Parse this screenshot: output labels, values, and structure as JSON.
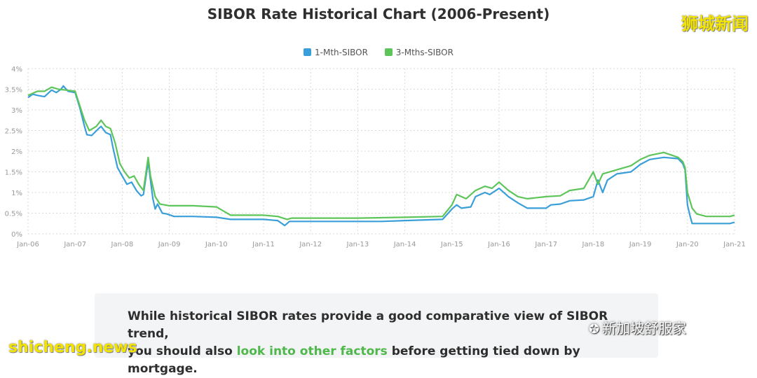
{
  "watermarks": {
    "top_right": "狮城新闻",
    "bottom_left": "shicheng.news",
    "wechat": "新加坡舒服家"
  },
  "colors": {
    "one_month": "#3a9fd9",
    "three_month": "#5ec55a",
    "link": "#4fb74b",
    "grid": "#d9d9d9"
  },
  "caption": {
    "line1": "While historical SIBOR rates provide a good comparative view of SIBOR trend,",
    "pre": "you should also ",
    "link": "look into other factors",
    "post": " before getting tied down by mortgage."
  },
  "chart_data": {
    "type": "line",
    "title": "SIBOR Rate Historical Chart (2006-Present)",
    "xlabel": "",
    "ylabel": "",
    "ylim": [
      0,
      4
    ],
    "yticks": [
      "0%",
      "0.5%",
      "1%",
      "1.5%",
      "2%",
      "2.5%",
      "3%",
      "3.5%",
      "4%"
    ],
    "xticks": [
      {
        "label": "Jan-06",
        "t": 0
      },
      {
        "label": "Jan-07",
        "t": 1
      },
      {
        "label": "Jan-08",
        "t": 2
      },
      {
        "label": "Jan-09",
        "t": 3
      },
      {
        "label": "Jan-10",
        "t": 4
      },
      {
        "label": "Jan-11",
        "t": 5
      },
      {
        "label": "Jan-12",
        "t": 6
      },
      {
        "label": "Jan-13",
        "t": 7
      },
      {
        "label": "Jan-14",
        "t": 8
      },
      {
        "label": "Jan-15",
        "t": 9
      },
      {
        "label": "Jan-16",
        "t": 10
      },
      {
        "label": "Jan-17",
        "t": 11
      },
      {
        "label": "Jan-18",
        "t": 12
      },
      {
        "label": "Jan-19",
        "t": 13
      },
      {
        "label": "Jan-20",
        "t": 14
      },
      {
        "label": "Jan-21",
        "t": 15
      }
    ],
    "legend_position": "top-center",
    "grid": true,
    "series": [
      {
        "name": "1-Mth-SIBOR",
        "color": "#3a9fd9",
        "points": [
          [
            0,
            3.3
          ],
          [
            0.1,
            3.38
          ],
          [
            0.2,
            3.35
          ],
          [
            0.35,
            3.32
          ],
          [
            0.5,
            3.48
          ],
          [
            0.6,
            3.42
          ],
          [
            0.7,
            3.5
          ],
          [
            0.75,
            3.58
          ],
          [
            0.85,
            3.45
          ],
          [
            1.0,
            3.42
          ],
          [
            1.1,
            3.05
          ],
          [
            1.2,
            2.6
          ],
          [
            1.25,
            2.4
          ],
          [
            1.35,
            2.38
          ],
          [
            1.5,
            2.55
          ],
          [
            1.55,
            2.6
          ],
          [
            1.65,
            2.45
          ],
          [
            1.75,
            2.4
          ],
          [
            1.8,
            2.1
          ],
          [
            1.9,
            1.6
          ],
          [
            2.0,
            1.4
          ],
          [
            2.1,
            1.2
          ],
          [
            2.2,
            1.25
          ],
          [
            2.3,
            1.05
          ],
          [
            2.4,
            0.92
          ],
          [
            2.45,
            0.95
          ],
          [
            2.55,
            1.75
          ],
          [
            2.6,
            1.3
          ],
          [
            2.65,
            0.85
          ],
          [
            2.7,
            0.6
          ],
          [
            2.75,
            0.72
          ],
          [
            2.85,
            0.5
          ],
          [
            2.95,
            0.48
          ],
          [
            3.1,
            0.42
          ],
          [
            3.5,
            0.42
          ],
          [
            4.0,
            0.4
          ],
          [
            4.3,
            0.35
          ],
          [
            5.0,
            0.35
          ],
          [
            5.3,
            0.32
          ],
          [
            5.45,
            0.2
          ],
          [
            5.55,
            0.3
          ],
          [
            6.0,
            0.3
          ],
          [
            7.0,
            0.3
          ],
          [
            7.5,
            0.3
          ],
          [
            8.0,
            0.32
          ],
          [
            8.8,
            0.35
          ],
          [
            9.0,
            0.6
          ],
          [
            9.1,
            0.7
          ],
          [
            9.2,
            0.62
          ],
          [
            9.4,
            0.65
          ],
          [
            9.5,
            0.9
          ],
          [
            9.7,
            1.0
          ],
          [
            9.8,
            0.95
          ],
          [
            10.0,
            1.1
          ],
          [
            10.2,
            0.9
          ],
          [
            10.4,
            0.75
          ],
          [
            10.6,
            0.62
          ],
          [
            11.0,
            0.62
          ],
          [
            11.1,
            0.7
          ],
          [
            11.3,
            0.72
          ],
          [
            11.5,
            0.8
          ],
          [
            11.8,
            0.82
          ],
          [
            12.0,
            0.9
          ],
          [
            12.1,
            1.3
          ],
          [
            12.2,
            1.0
          ],
          [
            12.3,
            1.3
          ],
          [
            12.5,
            1.45
          ],
          [
            12.8,
            1.5
          ],
          [
            13.0,
            1.68
          ],
          [
            13.2,
            1.8
          ],
          [
            13.5,
            1.85
          ],
          [
            13.8,
            1.82
          ],
          [
            13.9,
            1.7
          ],
          [
            13.95,
            1.55
          ],
          [
            14.0,
            0.7
          ],
          [
            14.05,
            0.45
          ],
          [
            14.1,
            0.25
          ],
          [
            14.3,
            0.25
          ],
          [
            14.9,
            0.25
          ],
          [
            15.0,
            0.28
          ]
        ]
      },
      {
        "name": "3-Mths-SIBOR",
        "color": "#5ec55a",
        "points": [
          [
            0,
            3.35
          ],
          [
            0.2,
            3.45
          ],
          [
            0.35,
            3.45
          ],
          [
            0.5,
            3.55
          ],
          [
            0.65,
            3.5
          ],
          [
            0.8,
            3.48
          ],
          [
            1.0,
            3.45
          ],
          [
            1.1,
            3.1
          ],
          [
            1.2,
            2.75
          ],
          [
            1.3,
            2.5
          ],
          [
            1.45,
            2.6
          ],
          [
            1.55,
            2.75
          ],
          [
            1.65,
            2.6
          ],
          [
            1.75,
            2.55
          ],
          [
            1.85,
            2.2
          ],
          [
            1.95,
            1.7
          ],
          [
            2.05,
            1.5
          ],
          [
            2.15,
            1.35
          ],
          [
            2.25,
            1.4
          ],
          [
            2.35,
            1.2
          ],
          [
            2.45,
            1.05
          ],
          [
            2.55,
            1.85
          ],
          [
            2.6,
            1.4
          ],
          [
            2.7,
            0.9
          ],
          [
            2.8,
            0.72
          ],
          [
            2.9,
            0.7
          ],
          [
            3.0,
            0.68
          ],
          [
            3.5,
            0.68
          ],
          [
            4.0,
            0.65
          ],
          [
            4.3,
            0.45
          ],
          [
            5.0,
            0.45
          ],
          [
            5.3,
            0.42
          ],
          [
            5.5,
            0.35
          ],
          [
            5.6,
            0.38
          ],
          [
            6.0,
            0.38
          ],
          [
            7.0,
            0.38
          ],
          [
            8.0,
            0.4
          ],
          [
            8.8,
            0.42
          ],
          [
            9.0,
            0.7
          ],
          [
            9.1,
            0.95
          ],
          [
            9.3,
            0.85
          ],
          [
            9.5,
            1.05
          ],
          [
            9.7,
            1.15
          ],
          [
            9.85,
            1.1
          ],
          [
            10.0,
            1.25
          ],
          [
            10.2,
            1.05
          ],
          [
            10.4,
            0.9
          ],
          [
            10.6,
            0.85
          ],
          [
            11.0,
            0.9
          ],
          [
            11.3,
            0.92
          ],
          [
            11.5,
            1.05
          ],
          [
            11.8,
            1.1
          ],
          [
            12.0,
            1.5
          ],
          [
            12.1,
            1.2
          ],
          [
            12.2,
            1.45
          ],
          [
            12.5,
            1.55
          ],
          [
            12.8,
            1.65
          ],
          [
            13.0,
            1.8
          ],
          [
            13.2,
            1.9
          ],
          [
            13.5,
            1.97
          ],
          [
            13.8,
            1.85
          ],
          [
            13.9,
            1.75
          ],
          [
            13.95,
            1.6
          ],
          [
            14.0,
            1.0
          ],
          [
            14.1,
            0.62
          ],
          [
            14.2,
            0.48
          ],
          [
            14.4,
            0.42
          ],
          [
            14.9,
            0.42
          ],
          [
            15.0,
            0.45
          ]
        ]
      }
    ]
  }
}
